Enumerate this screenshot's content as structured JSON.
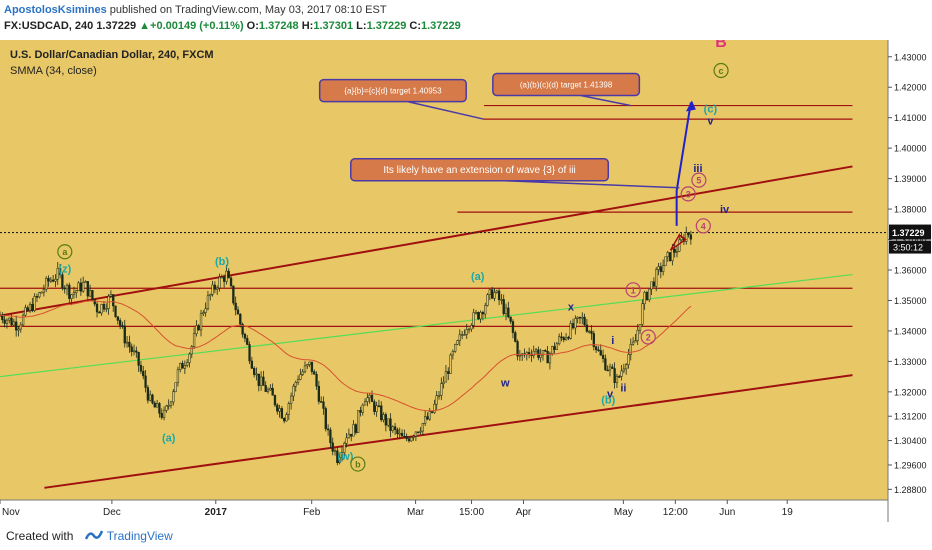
{
  "header": {
    "author": "ApostolosKsimines",
    "published": " published on TradingView.com, May 03, 2017 08:10 EST",
    "symbol": "FX:USDCAD, 240",
    "price": "1.37229",
    "change": "+0.00149 (+0.11%)",
    "o_label": "O:",
    "o": "1.37248",
    "h_label": "H:",
    "h": "1.37301",
    "l_label": "L:",
    "l": "1.37229",
    "c_label": "C:",
    "c": "1.37229"
  },
  "footer": {
    "created_with": "Created with",
    "brand": "TradingView"
  },
  "colors": {
    "chart_bg": "#e8c866",
    "candle": "#1a2a1a",
    "channel": "#a01010",
    "smma": "#d85030",
    "green_line": "#55dd55",
    "wave_teal": "#1aa8a8",
    "wave_navy": "#22228a",
    "wave_olive": "#5a7a10",
    "wave_pink": "#b84070",
    "callout_fill": "#d57a48",
    "callout_border": "#4a3aa8"
  },
  "chart_data": {
    "type": "candlestick",
    "title": "U.S. Dollar/Canadian Dollar, 240, FXCM",
    "indicator": "SMMA (34, close)",
    "xlabel": "",
    "ylabel": "",
    "ylim": [
      1.2845,
      1.4355
    ],
    "y_ticks": [
      "1.43000",
      "1.42000",
      "1.41000",
      "1.40000",
      "1.39000",
      "1.38000",
      "1.37000",
      "1.36000",
      "1.35000",
      "1.34000",
      "1.33000",
      "1.32000",
      "1.31200",
      "1.30400",
      "1.29600",
      "1.28800"
    ],
    "x_ticks": [
      "Nov",
      "Dec",
      "2017",
      "Feb",
      "Mar",
      "15:00",
      "Apr",
      "May",
      "12:00",
      "Jun",
      "19"
    ],
    "current_price_label": "1.37229",
    "countdown_label": "3:50:12",
    "price_path": [
      [
        0.0,
        1.3452
      ],
      [
        0.02,
        1.342
      ],
      [
        0.04,
        1.35
      ],
      [
        0.055,
        1.3565
      ],
      [
        0.065,
        1.3585
      ],
      [
        0.08,
        1.352
      ],
      [
        0.095,
        1.3555
      ],
      [
        0.11,
        1.347
      ],
      [
        0.125,
        1.351
      ],
      [
        0.14,
        1.338
      ],
      [
        0.155,
        1.33
      ],
      [
        0.17,
        1.316
      ],
      [
        0.185,
        1.312
      ],
      [
        0.19,
        1.316
      ],
      [
        0.2,
        1.326
      ],
      [
        0.215,
        1.334
      ],
      [
        0.23,
        1.348
      ],
      [
        0.245,
        1.356
      ],
      [
        0.255,
        1.3585
      ],
      [
        0.265,
        1.348
      ],
      [
        0.275,
        1.338
      ],
      [
        0.29,
        1.324
      ],
      [
        0.305,
        1.319
      ],
      [
        0.32,
        1.312
      ],
      [
        0.335,
        1.325
      ],
      [
        0.35,
        1.329
      ],
      [
        0.36,
        1.318
      ],
      [
        0.37,
        1.305
      ],
      [
        0.38,
        1.2985
      ],
      [
        0.39,
        1.306
      ],
      [
        0.4,
        1.308
      ],
      [
        0.41,
        1.319
      ],
      [
        0.425,
        1.314
      ],
      [
        0.44,
        1.308
      ],
      [
        0.455,
        1.304
      ],
      [
        0.47,
        1.308
      ],
      [
        0.485,
        1.312
      ],
      [
        0.495,
        1.32
      ],
      [
        0.51,
        1.332
      ],
      [
        0.525,
        1.342
      ],
      [
        0.54,
        1.346
      ],
      [
        0.555,
        1.353
      ],
      [
        0.565,
        1.349
      ],
      [
        0.575,
        1.342
      ],
      [
        0.585,
        1.331
      ],
      [
        0.6,
        1.334
      ],
      [
        0.615,
        1.331
      ],
      [
        0.63,
        1.337
      ],
      [
        0.645,
        1.341
      ],
      [
        0.655,
        1.344
      ],
      [
        0.665,
        1.34
      ],
      [
        0.675,
        1.332
      ],
      [
        0.685,
        1.328
      ],
      [
        0.695,
        1.3235
      ],
      [
        0.705,
        1.331
      ],
      [
        0.715,
        1.336
      ],
      [
        0.725,
        1.35
      ],
      [
        0.735,
        1.356
      ],
      [
        0.745,
        1.361
      ],
      [
        0.755,
        1.365
      ],
      [
        0.765,
        1.368
      ],
      [
        0.772,
        1.372
      ],
      [
        0.778,
        1.3723
      ]
    ],
    "channel": [
      {
        "name": "upper",
        "from": [
          0.0,
          1.345
        ],
        "to": [
          0.96,
          1.394
        ]
      },
      {
        "name": "lower",
        "from": [
          0.05,
          1.2885
        ],
        "to": [
          0.96,
          1.3255
        ]
      },
      {
        "name": "inner",
        "from": [
          0.0,
          1.325
        ],
        "to": [
          0.96,
          1.3585
        ]
      }
    ],
    "horizontal_levels": [
      {
        "y": 1.41398,
        "from": 0.545,
        "to": 0.96
      },
      {
        "y": 1.40953,
        "from": 0.545,
        "to": 0.96
      },
      {
        "y": 1.379,
        "from": 0.515,
        "to": 0.96
      },
      {
        "y": 1.354,
        "from": 0.0,
        "to": 0.96
      },
      {
        "y": 1.3415,
        "from": 0.0,
        "to": 0.96
      }
    ],
    "wave_labels": [
      {
        "text": "a",
        "x": 0.073,
        "y": 1.366,
        "color": "olive",
        "circle": true
      },
      {
        "text": "(z)",
        "x": 0.073,
        "y": 1.3605,
        "color": "teal"
      },
      {
        "text": "(b)",
        "x": 0.25,
        "y": 1.363,
        "color": "teal"
      },
      {
        "text": "(a)",
        "x": 0.19,
        "y": 1.305,
        "color": "teal"
      },
      {
        "text": "(a)",
        "x": 0.538,
        "y": 1.358,
        "color": "teal"
      },
      {
        "text": "x",
        "x": 0.643,
        "y": 1.348,
        "color": "navy"
      },
      {
        "text": "w",
        "x": 0.569,
        "y": 1.323,
        "color": "navy"
      },
      {
        "text": "i",
        "x": 0.69,
        "y": 1.337,
        "color": "navy"
      },
      {
        "text": "v",
        "x": 0.687,
        "y": 1.3195,
        "color": "navy"
      },
      {
        "text": "ii",
        "x": 0.702,
        "y": 1.3215,
        "color": "navy"
      },
      {
        "text": "(b)",
        "x": 0.685,
        "y": 1.3175,
        "color": "teal"
      },
      {
        "text": "(w)",
        "x": 0.389,
        "y": 1.299,
        "color": "teal"
      },
      {
        "text": "b",
        "x": 0.403,
        "y": 1.2963,
        "color": "olive",
        "circle": true
      },
      {
        "text": "1",
        "x": 0.713,
        "y": 1.3535,
        "color": "pink",
        "circle": true
      },
      {
        "text": "2",
        "x": 0.73,
        "y": 1.338,
        "color": "pink",
        "circle": true
      },
      {
        "text": "3",
        "x": 0.775,
        "y": 1.385,
        "color": "pink",
        "circle": true
      },
      {
        "text": "4",
        "x": 0.792,
        "y": 1.3745,
        "color": "pink",
        "circle": true
      },
      {
        "text": "5",
        "x": 0.787,
        "y": 1.3895,
        "color": "pink",
        "circle": true
      },
      {
        "text": "iii",
        "x": 0.786,
        "y": 1.3935,
        "color": "navy"
      },
      {
        "text": "iv",
        "x": 0.816,
        "y": 1.38,
        "color": "navy"
      },
      {
        "text": "(c)",
        "x": 0.8,
        "y": 1.413,
        "color": "teal"
      },
      {
        "text": "v",
        "x": 0.8,
        "y": 1.409,
        "color": "navy"
      },
      {
        "text": "c",
        "x": 0.812,
        "y": 1.4255,
        "color": "olive",
        "circle": true
      },
      {
        "text": "B",
        "x": 0.812,
        "y": 1.4345,
        "color": "pinkbig"
      }
    ],
    "callouts": [
      {
        "text": "{a}{b}={c}{d} target 1.40953",
        "x": 0.36,
        "y": 1.4225,
        "w": 0.165,
        "pointer": [
          0.545,
          1.4095
        ]
      },
      {
        "text": "(a)(b)(c)(d) target 1.41398",
        "x": 0.555,
        "y": 1.4245,
        "w": 0.165,
        "pointer": [
          0.71,
          1.414
        ]
      },
      {
        "text": "Its likely have an extension of wave {3} of iii",
        "x": 0.395,
        "y": 1.3965,
        "w": 0.29,
        "pointer": [
          0.765,
          1.387
        ]
      }
    ],
    "projection": {
      "from": [
        0.762,
        1.3745
      ],
      "via": [
        0.762,
        1.386
      ],
      "to": [
        0.778,
        1.415
      ]
    }
  }
}
